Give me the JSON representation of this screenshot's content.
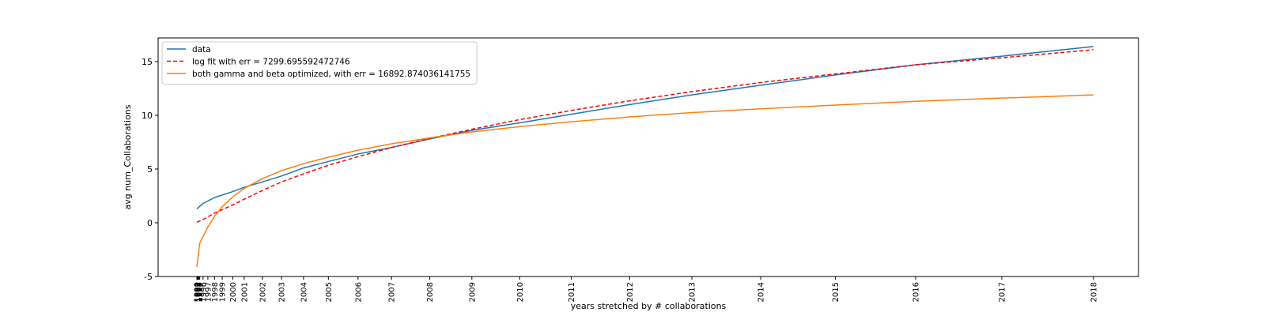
{
  "chart_data": {
    "type": "line",
    "title": "",
    "xlabel": "years stretched by # collaborations",
    "ylabel": "avg num_Collaborations",
    "ylim": [
      -5,
      17.2
    ],
    "yticks": [
      -5,
      0,
      5,
      10,
      15
    ],
    "grid": false,
    "legend_position": "top-left",
    "x_ticks": [
      {
        "label": "1990",
        "x": 0.5
      },
      {
        "label": "1991",
        "x": 1.0
      },
      {
        "label": "1992",
        "x": 1.5
      },
      {
        "label": "1993",
        "x": 2.0
      },
      {
        "label": "1994",
        "x": 2.5
      },
      {
        "label": "1995",
        "x": 3.5
      },
      {
        "label": "1996",
        "x": 7.0
      },
      {
        "label": "1997",
        "x": 12.0
      },
      {
        "label": "1998",
        "x": 19.0
      },
      {
        "label": "1999",
        "x": 27.0
      },
      {
        "label": "2000",
        "x": 38.0
      },
      {
        "label": "2001",
        "x": 50.0
      },
      {
        "label": "2002",
        "x": 69.0
      },
      {
        "label": "2003",
        "x": 89.0
      },
      {
        "label": "2004",
        "x": 112.0
      },
      {
        "label": "2005",
        "x": 138.0
      },
      {
        "label": "2006",
        "x": 169.0
      },
      {
        "label": "2007",
        "x": 204.0
      },
      {
        "label": "2008",
        "x": 244.0
      },
      {
        "label": "2009",
        "x": 288.0
      },
      {
        "label": "2010",
        "x": 338.0
      },
      {
        "label": "2011",
        "x": 392.0
      },
      {
        "label": "2012",
        "x": 453.0
      },
      {
        "label": "2013",
        "x": 518.0
      },
      {
        "label": "2014",
        "x": 590.0
      },
      {
        "label": "2015",
        "x": 668.0
      },
      {
        "label": "2016",
        "x": 752.0
      },
      {
        "label": "2017",
        "x": 842.0
      },
      {
        "label": "2018",
        "x": 938.0
      }
    ],
    "xlim": [
      -40,
      985
    ],
    "series": [
      {
        "name": "data",
        "color": "#1f77b4",
        "style": "solid",
        "points": [
          [
            0.5,
            1.3
          ],
          [
            7,
            1.8
          ],
          [
            19,
            2.35
          ],
          [
            38,
            2.9
          ],
          [
            50,
            3.3
          ],
          [
            69,
            3.8
          ],
          [
            89,
            4.35
          ],
          [
            112,
            5.1
          ],
          [
            138,
            5.7
          ],
          [
            169,
            6.4
          ],
          [
            204,
            7.0
          ],
          [
            244,
            7.8
          ],
          [
            288,
            8.6
          ],
          [
            338,
            9.3
          ],
          [
            392,
            10.1
          ],
          [
            453,
            11.0
          ],
          [
            518,
            11.9
          ],
          [
            590,
            12.8
          ],
          [
            668,
            13.75
          ],
          [
            752,
            14.7
          ],
          [
            842,
            15.5
          ],
          [
            938,
            16.4
          ]
        ]
      },
      {
        "name": "log fit with err = 7299.695592472746",
        "color": "#ff0000",
        "style": "dashed",
        "points": [
          [
            0.5,
            0.05
          ],
          [
            7,
            0.3
          ],
          [
            19,
            0.9
          ],
          [
            38,
            1.65
          ],
          [
            50,
            2.2
          ],
          [
            69,
            3.0
          ],
          [
            89,
            3.8
          ],
          [
            112,
            4.55
          ],
          [
            138,
            5.35
          ],
          [
            169,
            6.15
          ],
          [
            204,
            7.0
          ],
          [
            244,
            7.85
          ],
          [
            288,
            8.7
          ],
          [
            338,
            9.6
          ],
          [
            392,
            10.45
          ],
          [
            453,
            11.35
          ],
          [
            518,
            12.2
          ],
          [
            590,
            13.05
          ],
          [
            668,
            13.85
          ],
          [
            752,
            14.7
          ],
          [
            842,
            15.35
          ],
          [
            938,
            16.1
          ]
        ]
      },
      {
        "name": "both gamma and beta optimized, with err = 16892.874036141755",
        "color": "#ff7f0e",
        "style": "solid",
        "points": [
          [
            0.5,
            -4.1
          ],
          [
            3.5,
            -1.9
          ],
          [
            12,
            -0.4
          ],
          [
            19,
            0.6
          ],
          [
            27,
            1.5
          ],
          [
            38,
            2.4
          ],
          [
            50,
            3.2
          ],
          [
            69,
            4.1
          ],
          [
            89,
            4.85
          ],
          [
            112,
            5.5
          ],
          [
            138,
            6.1
          ],
          [
            169,
            6.75
          ],
          [
            204,
            7.35
          ],
          [
            244,
            7.9
          ],
          [
            288,
            8.45
          ],
          [
            338,
            8.95
          ],
          [
            392,
            9.4
          ],
          [
            453,
            9.85
          ],
          [
            518,
            10.25
          ],
          [
            590,
            10.6
          ],
          [
            668,
            10.95
          ],
          [
            752,
            11.3
          ],
          [
            842,
            11.6
          ],
          [
            938,
            11.9
          ]
        ]
      }
    ]
  }
}
